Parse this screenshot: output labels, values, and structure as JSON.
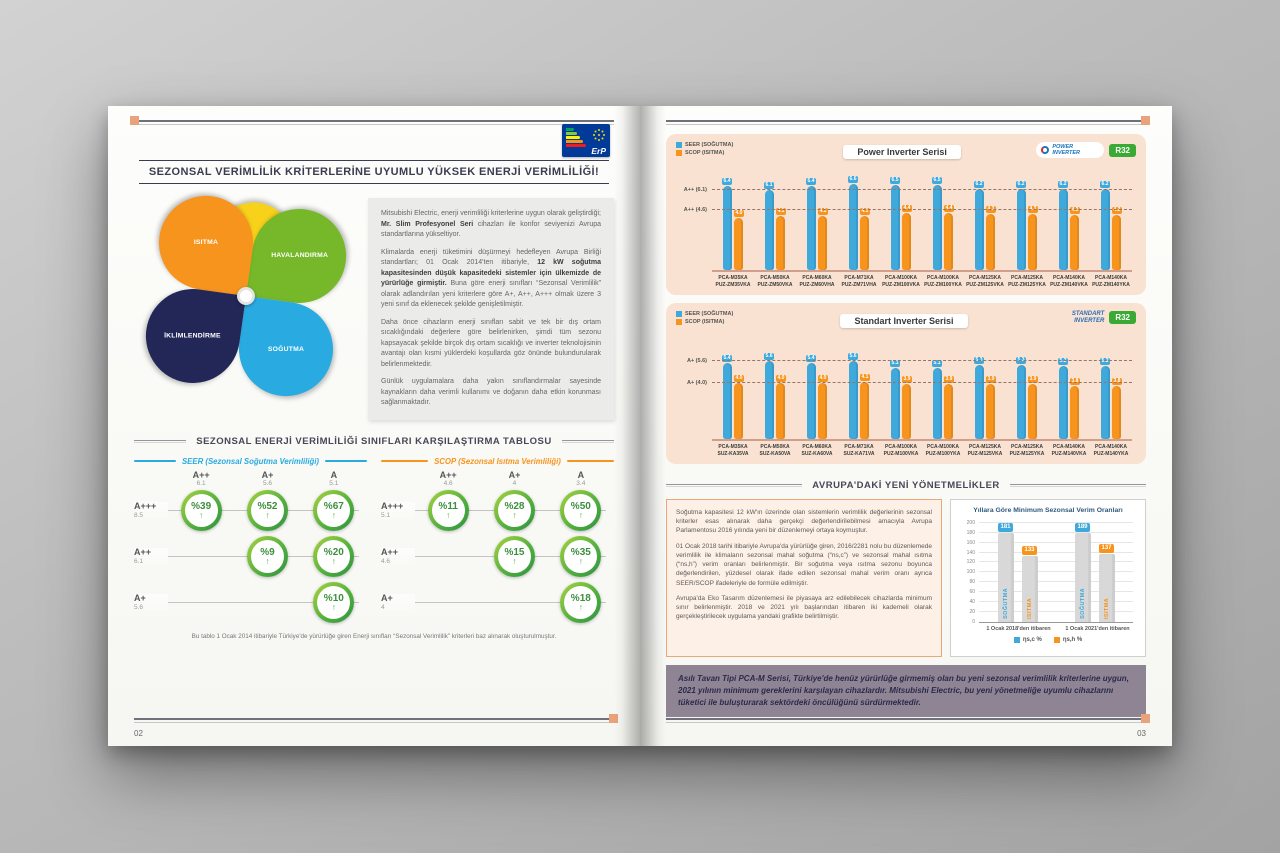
{
  "pages": {
    "left_number": "02",
    "right_number": "03"
  },
  "accent": {
    "square": "#e9a27b",
    "panel_bg": "#f9e2d1",
    "footer_bg": "#8f8494"
  },
  "left": {
    "erp": {
      "label": "ErP"
    },
    "title": "SEZONSAL VERİMLİLİK KRİTERLERİNE UYUMLU YÜKSEK ENERJİ VERİMLİLİĞİ!",
    "petals": [
      {
        "label": "HAVALANDIRMA",
        "color": "#76b82a"
      },
      {
        "label": "",
        "color": "#f8d21a"
      },
      {
        "label": "ISITMA",
        "color": "#f7941e"
      },
      {
        "label": "SOĞUTMA",
        "color": "#29abe2"
      },
      {
        "label": "İKLİMLENDİRME",
        "color": "#232758"
      }
    ],
    "intro": [
      [
        {
          "t": "Mitsubishi Electric, enerji verimliliği kriterlerine uygun olarak geliştirdiği; ",
          "b": false
        },
        {
          "t": "Mr. Slim Profesyonel Seri",
          "b": true
        },
        {
          "t": " cihazları ile konfor seviyenizi Avrupa standartlarına yükseltiyor.",
          "b": false
        }
      ],
      [
        {
          "t": "Klimalarda enerji tüketimini düşürmeyi hedefleyen Avrupa Birliği standartları; 01 Ocak 2014'ten itibariyle, ",
          "b": false
        },
        {
          "t": "12 kW soğutma kapasitesinden düşük kapasitedeki sistemler için ülkemizde de yürürlüğe girmiştir.",
          "b": true
        },
        {
          "t": " Buna göre enerji sınıfları “Sezonsal Verimlilik” olarak adlandırılan yeni kriterlere göre A+, A++, A+++ olmak üzere 3 yeni sınıf da eklenecek şekilde genişletilmiştir.",
          "b": false
        }
      ],
      [
        {
          "t": "Daha önce cihazların enerji sınıfları sabit ve tek bir dış ortam sıcaklığındaki değerlere göre belirlenirken, şimdi tüm sezonu kapsayacak şekilde birçok dış ortam sıcaklığı ve inverter teknolojisinin avantajı olan kısmi yüklerdeki koşullarda göz önünde bulundurularak belirlenmektedir.",
          "b": false
        }
      ],
      [
        {
          "t": "Günlük uygulamalara daha yakın sınıflandırmalar sayesinde kaynakların daha verimli kullanımı ve doğanın daha etkin korunması sağlanmaktadır.",
          "b": false
        }
      ]
    ],
    "comparison": {
      "title": "SEZONSAL ENERJİ VERİMLİLİĞİ SINIFLARI KARŞILAŞTIRMA TABLOSU",
      "footnote": "Bu tablo 1 Ocak 2014 itibariyle Türkiye'de yürürlüğe giren Enerji sınıfları “Sezonsal Verimlilik” kriterleri baz alınarak oluşturulmuştur.",
      "seer": {
        "header": "SEER (Sezonsal Soğutma Verimliliği)",
        "color": "#29abe2",
        "columns": [
          {
            "cls": "A++",
            "val": "6.1"
          },
          {
            "cls": "A+",
            "val": "5.6"
          },
          {
            "cls": "A",
            "val": "5.1"
          }
        ],
        "rows": [
          {
            "cls": "A+++",
            "val": "8.5",
            "cells": [
              "%39",
              "%52",
              "%67"
            ]
          },
          {
            "cls": "A++",
            "val": "6.1",
            "cells": [
              null,
              "%9",
              "%20"
            ]
          },
          {
            "cls": "A+",
            "val": "5.6",
            "cells": [
              null,
              null,
              "%10"
            ]
          }
        ]
      },
      "scop": {
        "header": "SCOP (Sezonsal Isıtma Verimliliği)",
        "color": "#f7941e",
        "columns": [
          {
            "cls": "A++",
            "val": "4.6"
          },
          {
            "cls": "A+",
            "val": "4"
          },
          {
            "cls": "A",
            "val": "3.4"
          }
        ],
        "rows": [
          {
            "cls": "A+++",
            "val": "5.1",
            "cells": [
              "%11",
              "%28",
              "%50"
            ]
          },
          {
            "cls": "A++",
            "val": "4.6",
            "cells": [
              null,
              "%15",
              "%35"
            ]
          },
          {
            "cls": "A+",
            "val": "4",
            "cells": [
              null,
              null,
              "%18"
            ]
          }
        ]
      }
    }
  },
  "right": {
    "reg_title": "AVRUPA'DAKİ YENİ YÖNETMELİKLER",
    "reg_paragraphs": [
      "Soğutma kapasitesi 12 kW'ın üzerinde olan sistemlerin verimlilik değerlerinin sezonsal kriterler esas alınarak daha gerçekçi değerlendirilebilmesi amacıyla Avrupa Parlamentosu 2016 yılında yeni bir düzenlemeyi ortaya koymuştur.",
      "01 Ocak 2018 tarihi itibariyle Avrupa'da yürürlüğe giren, 2016/2281 nolu bu düzenlemede verimlilik ile klimaların sezonsal mahal soğutma (“ns,c”) ve sezonsal mahal ısıtma (“ns,h”) verim oranları belirlenmiştir. Bir soğutma veya ısıtma sezonu boyunca değerlendirilen, yüzdesel olarak ifade edilen sezonsal mahal verim oranı ayrıca SEER/SCOP ifadeleriyle de formüle edilmiştir.",
      "Avrupa'da Eko Tasarım düzenlemesi ile piyasaya arz edilebilecek cihazlarda minimum sınır belirlenmiştir. 2018 ve 2021 yılı başlarından itibaren iki kademeli olarak gerçekleştirilecek uygulama yandaki grafikte belirtilmiştir."
    ],
    "footer_text": "Asılı Tavan Tipi PCA-M Serisi, Türkiye'de henüz yürürlüğe girmemiş olan bu yeni sezonsal verimlilik kriterlerine uygun, 2021 yılının minimum gereklerini karşılayan cihazlardır. Mitsubishi Electric, bu yeni yönetmeliğe uyumlu cihazlarını tüketici ile buluşturarak sektördeki öncülüğünü sürdürmektedir."
  },
  "chart_data": [
    {
      "type": "bar",
      "title": "Power Inverter Serisi",
      "brand": "POWER INVERTER",
      "badge": "R32",
      "legend": [
        "SEER (SOĞUTMA)",
        "SCOP (ISITMA)"
      ],
      "series_colors": [
        "#3fa9dc",
        "#f7941e"
      ],
      "ylim": [
        0,
        7.5
      ],
      "ref_lines": [
        {
          "label": "A++ (6.1)",
          "value": 6.1
        },
        {
          "label": "A++ (4.6)",
          "value": 4.6
        }
      ],
      "categories": [
        [
          "PCA-M35KA",
          "PUZ-ZM35VKA"
        ],
        [
          "PCA-M50KA",
          "PUZ-ZM50VKA"
        ],
        [
          "PCA-M60KA",
          "PUZ-ZM60VHA"
        ],
        [
          "PCA-M71KA",
          "PUZ-ZM71VHA"
        ],
        [
          "PCA-M100KA",
          "PUZ-ZM100VKA"
        ],
        [
          "PCA-M100KA",
          "PUZ-ZM100YKA"
        ],
        [
          "PCA-M125KA",
          "PUZ-ZM125VKA"
        ],
        [
          "PCA-M125KA",
          "PUZ-ZM125YKA"
        ],
        [
          "PCA-M140KA",
          "PUZ-ZM140VKA"
        ],
        [
          "PCA-M140KA",
          "PUZ-ZM140YKA"
        ]
      ],
      "series": [
        {
          "name": "SEER (SOĞUTMA)",
          "values": [
            6.4,
            6.1,
            6.4,
            6.6,
            6.5,
            6.5,
            6.2,
            6.2,
            6.2,
            6.2
          ]
        },
        {
          "name": "SCOP (ISITMA)",
          "values": [
            4.0,
            4.1,
            4.1,
            4.1,
            4.4,
            4.4,
            4.3,
            4.3,
            4.2,
            4.2
          ]
        }
      ]
    },
    {
      "type": "bar",
      "title": "Standart Inverter Serisi",
      "brand": "STANDART INVERTER",
      "badge": "R32",
      "legend": [
        "SEER (SOĞUTMA)",
        "SCOP (ISITMA)"
      ],
      "series_colors": [
        "#3fa9dc",
        "#f7941e"
      ],
      "ylim": [
        0,
        7
      ],
      "ref_lines": [
        {
          "label": "A+ (5.6)",
          "value": 5.6
        },
        {
          "label": "A+ (4.0)",
          "value": 4.0
        }
      ],
      "categories": [
        [
          "PCA-M35KA",
          "SUZ-KA35VA"
        ],
        [
          "PCA-M50KA",
          "SUZ-KA50VA"
        ],
        [
          "PCA-M60KA",
          "SUZ-KA60VA"
        ],
        [
          "PCA-M71KA",
          "SUZ-KA71VA"
        ],
        [
          "PCA-M100KA",
          "PUZ-M100VKA"
        ],
        [
          "PCA-M100KA",
          "PUZ-M100YKA"
        ],
        [
          "PCA-M125KA",
          "PUZ-M125VKA"
        ],
        [
          "PCA-M125KA",
          "PUZ-M125YKA"
        ],
        [
          "PCA-M140KA",
          "PUZ-M140VKA"
        ],
        [
          "PCA-M140KA",
          "PUZ-M140YKA"
        ]
      ],
      "series": [
        {
          "name": "SEER (SOĞUTMA)",
          "values": [
            5.4,
            5.6,
            5.4,
            5.6,
            5.1,
            5.1,
            5.3,
            5.3,
            5.2,
            5.2
          ]
        },
        {
          "name": "SCOP (ISITMA)",
          "values": [
            4.0,
            4.0,
            4.0,
            4.1,
            3.9,
            3.9,
            3.9,
            3.9,
            3.8,
            3.8
          ]
        }
      ]
    },
    {
      "type": "bar",
      "title": "Yıllara Göre Minimum Sezonsal Verim Oranları",
      "groups": [
        "1 Ocak 2018'den itibaren",
        "1 Ocak 2021'den itibaren"
      ],
      "bar_labels": [
        "SOĞUTMA",
        "ISITMA"
      ],
      "legend": [
        "ηs,c %",
        "ηs,h %"
      ],
      "series": [
        {
          "name": "ηs,c %",
          "values": [
            181,
            189
          ]
        },
        {
          "name": "ηs,h %",
          "values": [
            133,
            137
          ]
        }
      ],
      "series_colors": [
        "#3fa9dc",
        "#f7941e"
      ],
      "ylim": [
        0,
        200
      ],
      "yticks": [
        0,
        20,
        40,
        60,
        80,
        100,
        120,
        140,
        160,
        180,
        200
      ],
      "grid": true,
      "legend_position": "bottom"
    }
  ]
}
